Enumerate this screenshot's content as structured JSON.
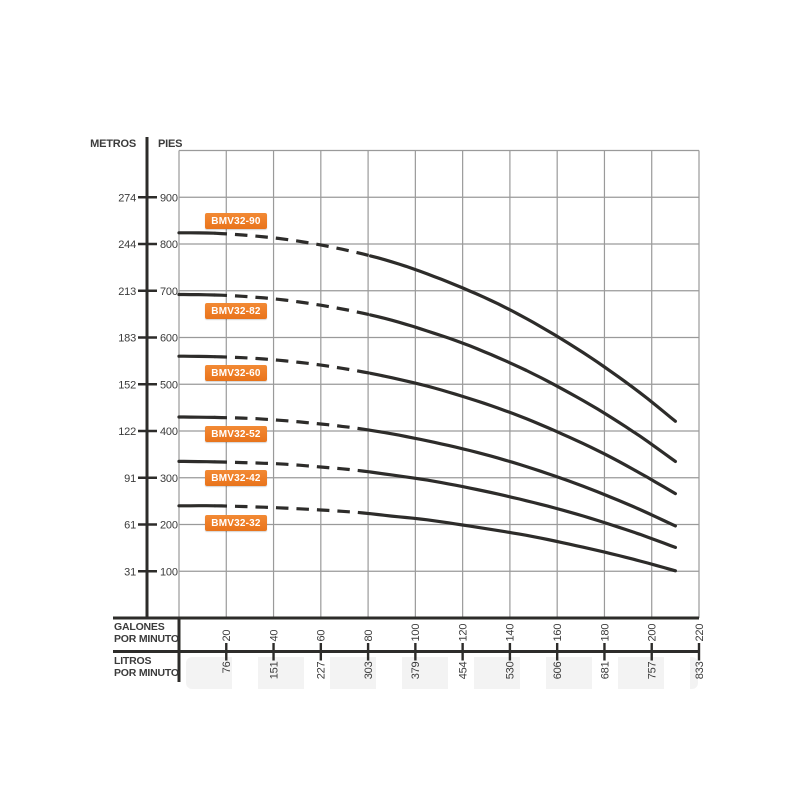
{
  "chart_data": {
    "type": "line",
    "title": "",
    "description": "Pump head-capacity performance curves, BMV32 series",
    "y_axis": {
      "label_metros": "METROS",
      "label_pies": "PIES",
      "metros_ticks": [
        274,
        244,
        213,
        183,
        152,
        122,
        91,
        61,
        31
      ],
      "pies_ticks": [
        900,
        800,
        700,
        600,
        500,
        400,
        300,
        200,
        100
      ],
      "range_pies": [
        0,
        1000
      ],
      "grid_step_pies": 100
    },
    "x_axis": {
      "galones_title_line1": "GALONES",
      "galones_title_line2": "POR MINUTO",
      "litros_title_line1": "LITROS",
      "litros_title_line2": "POR MINUTO",
      "galones_ticks": [
        20,
        40,
        60,
        80,
        100,
        120,
        140,
        160,
        180,
        200,
        220
      ],
      "litros_ticks": [
        76,
        151,
        227,
        303,
        379,
        454,
        530,
        606,
        681,
        757,
        833
      ],
      "range_gpm": [
        0,
        220
      ],
      "grid_step_gpm": 20
    },
    "dash_region_gpm": [
      15,
      81
    ],
    "series": [
      {
        "name": "BMV32-90",
        "label_side": "above",
        "points_gpm_pies": [
          [
            0,
            824
          ],
          [
            15,
            823
          ],
          [
            30,
            818
          ],
          [
            45,
            810
          ],
          [
            60,
            798
          ],
          [
            75,
            782
          ],
          [
            90,
            762
          ],
          [
            105,
            736
          ],
          [
            120,
            706
          ],
          [
            135,
            672
          ],
          [
            150,
            632
          ],
          [
            165,
            587
          ],
          [
            180,
            537
          ],
          [
            195,
            482
          ],
          [
            210,
            421
          ]
        ]
      },
      {
        "name": "BMV32-82",
        "label_side": "below",
        "points_gpm_pies": [
          [
            0,
            692
          ],
          [
            15,
            691
          ],
          [
            30,
            687
          ],
          [
            45,
            680
          ],
          [
            60,
            669
          ],
          [
            75,
            655
          ],
          [
            90,
            637
          ],
          [
            105,
            614
          ],
          [
            120,
            588
          ],
          [
            135,
            557
          ],
          [
            150,
            522
          ],
          [
            165,
            482
          ],
          [
            180,
            438
          ],
          [
            195,
            389
          ],
          [
            210,
            335
          ]
        ]
      },
      {
        "name": "BMV32-60",
        "label_side": "below",
        "points_gpm_pies": [
          [
            0,
            560
          ],
          [
            15,
            559
          ],
          [
            30,
            556
          ],
          [
            45,
            550
          ],
          [
            60,
            541
          ],
          [
            75,
            529
          ],
          [
            90,
            514
          ],
          [
            105,
            496
          ],
          [
            120,
            474
          ],
          [
            135,
            449
          ],
          [
            150,
            420
          ],
          [
            165,
            387
          ],
          [
            180,
            351
          ],
          [
            195,
            310
          ],
          [
            210,
            266
          ]
        ]
      },
      {
        "name": "BMV32-52",
        "label_side": "below",
        "points_gpm_pies": [
          [
            0,
            430
          ],
          [
            15,
            429
          ],
          [
            30,
            427
          ],
          [
            45,
            422
          ],
          [
            60,
            415
          ],
          [
            75,
            406
          ],
          [
            90,
            394
          ],
          [
            105,
            379
          ],
          [
            120,
            362
          ],
          [
            135,
            342
          ],
          [
            150,
            319
          ],
          [
            165,
            293
          ],
          [
            180,
            264
          ],
          [
            195,
            232
          ],
          [
            210,
            197
          ]
        ]
      },
      {
        "name": "BMV32-42",
        "label_side": "below",
        "points_gpm_pies": [
          [
            0,
            335
          ],
          [
            15,
            334
          ],
          [
            30,
            332
          ],
          [
            45,
            329
          ],
          [
            60,
            323
          ],
          [
            75,
            316
          ],
          [
            90,
            306
          ],
          [
            105,
            295
          ],
          [
            120,
            281
          ],
          [
            135,
            265
          ],
          [
            150,
            247
          ],
          [
            165,
            227
          ],
          [
            180,
            204
          ],
          [
            195,
            179
          ],
          [
            210,
            151
          ]
        ]
      },
      {
        "name": "BMV32-32",
        "label_side": "below",
        "points_gpm_pies": [
          [
            0,
            240
          ],
          [
            15,
            240
          ],
          [
            30,
            238
          ],
          [
            45,
            235
          ],
          [
            60,
            231
          ],
          [
            75,
            226
          ],
          [
            90,
            218
          ],
          [
            105,
            210
          ],
          [
            120,
            199
          ],
          [
            135,
            187
          ],
          [
            150,
            174
          ],
          [
            165,
            158
          ],
          [
            180,
            141
          ],
          [
            195,
            122
          ],
          [
            210,
            101
          ]
        ]
      }
    ],
    "colors": {
      "background": "#ffffff",
      "grid": "#9a9a9a",
      "axis": "#2d2c2a",
      "curve": "#2d2c2a",
      "tick_text": "#3b3b3b",
      "label_bg": "#ee7d26",
      "label_text": "#ffffff"
    },
    "legend_position": "on-curve-left",
    "grid": true
  }
}
